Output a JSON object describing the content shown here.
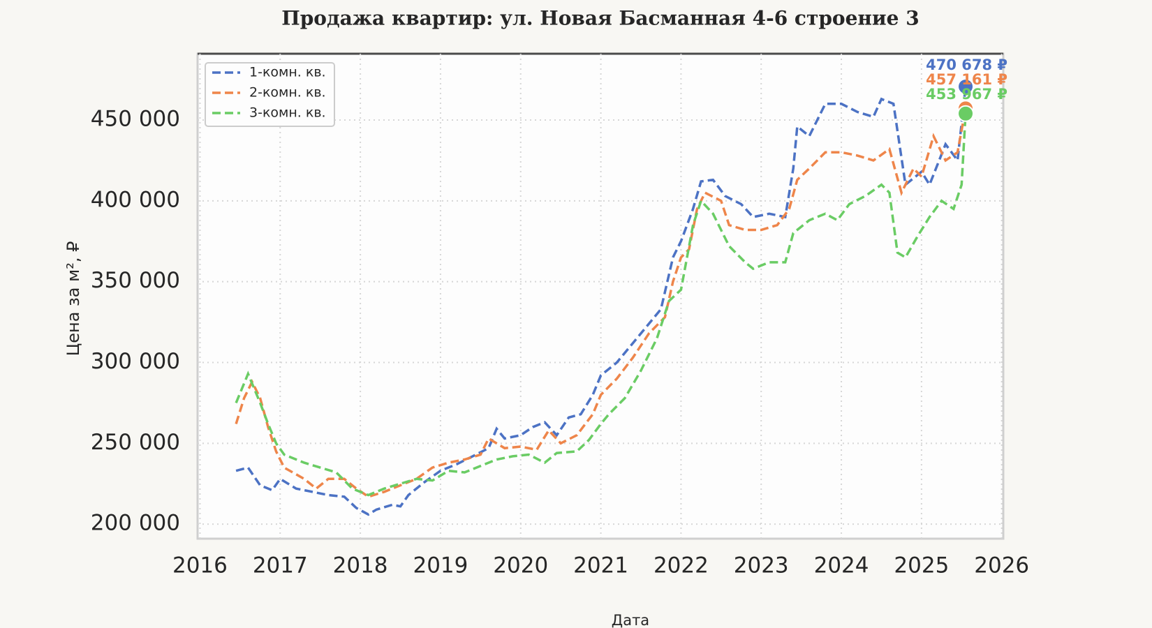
{
  "chart_data": {
    "type": "line",
    "title": "Продажа квартир: ул. Новая Басманная 4-6 строение 3",
    "x_label": "Дата",
    "y_label": "Цена за м², ₽",
    "xlim": [
      2015.97,
      2026.02
    ],
    "xticks": [
      2016,
      2017,
      2018,
      2019,
      2020,
      2021,
      2022,
      2023,
      2024,
      2025,
      2026
    ],
    "ylim": [
      191000,
      491000
    ],
    "yticks": [
      {
        "value": 200000,
        "label": "200 000"
      },
      {
        "value": 250000,
        "label": "250 000"
      },
      {
        "value": 300000,
        "label": "300 000"
      },
      {
        "value": 350000,
        "label": "350 000"
      },
      {
        "value": 400000,
        "label": "400 000"
      },
      {
        "value": 450000,
        "label": "450 000"
      }
    ],
    "grid": true,
    "legend": "upper left",
    "series": [
      {
        "name": "1-комн. кв.",
        "color": "#4c72c4",
        "x": [
          2016.45,
          2016.6,
          2016.75,
          2016.9,
          2017.0,
          2017.2,
          2017.4,
          2017.6,
          2017.8,
          2017.95,
          2018.1,
          2018.2,
          2018.4,
          2018.5,
          2018.6,
          2018.8,
          2019.0,
          2019.2,
          2019.4,
          2019.6,
          2019.7,
          2019.8,
          2020.0,
          2020.15,
          2020.3,
          2020.45,
          2020.6,
          2020.75,
          2020.9,
          2021.0,
          2021.2,
          2021.4,
          2021.6,
          2021.75,
          2021.9,
          2022.0,
          2022.15,
          2022.25,
          2022.4,
          2022.55,
          2022.75,
          2022.9,
          2023.1,
          2023.3,
          2023.4,
          2023.45,
          2023.6,
          2023.8,
          2024.0,
          2024.2,
          2024.4,
          2024.5,
          2024.65,
          2024.8,
          2025.0,
          2025.1,
          2025.3,
          2025.45,
          2025.55
        ],
        "values": [
          233000,
          235000,
          224000,
          221000,
          228000,
          222000,
          220000,
          218000,
          217000,
          210000,
          206000,
          209000,
          212000,
          211000,
          218000,
          226000,
          233000,
          237000,
          242000,
          247000,
          259000,
          253000,
          255000,
          260000,
          263000,
          255000,
          266000,
          268000,
          280000,
          292000,
          300000,
          312000,
          324000,
          333000,
          365000,
          375000,
          395000,
          412000,
          413000,
          403000,
          398000,
          390000,
          392000,
          390000,
          420000,
          446000,
          440000,
          460000,
          460000,
          455000,
          452000,
          463000,
          460000,
          410000,
          418000,
          410000,
          435000,
          425000,
          470678
        ]
      },
      {
        "name": "2-комн. кв.",
        "color": "#ee854a",
        "x": [
          2016.45,
          2016.55,
          2016.65,
          2016.75,
          2016.85,
          2016.95,
          2017.05,
          2017.3,
          2017.45,
          2017.6,
          2017.8,
          2017.95,
          2018.1,
          2018.3,
          2018.5,
          2018.7,
          2018.9,
          2019.1,
          2019.3,
          2019.5,
          2019.6,
          2019.8,
          2020.0,
          2020.2,
          2020.35,
          2020.5,
          2020.7,
          2020.9,
          2021.0,
          2021.2,
          2021.4,
          2021.6,
          2021.8,
          2021.9,
          2022.0,
          2022.1,
          2022.2,
          2022.3,
          2022.5,
          2022.6,
          2022.8,
          2023.0,
          2023.2,
          2023.35,
          2023.45,
          2023.6,
          2023.8,
          2024.0,
          2024.2,
          2024.4,
          2024.6,
          2024.75,
          2024.9,
          2025.0,
          2025.15,
          2025.3,
          2025.45,
          2025.55
        ],
        "values": [
          262000,
          278000,
          288000,
          278000,
          260000,
          245000,
          235000,
          228000,
          222000,
          228000,
          228000,
          222000,
          217000,
          220000,
          224000,
          228000,
          235000,
          238000,
          240000,
          243000,
          253000,
          247000,
          248000,
          246000,
          258000,
          250000,
          255000,
          268000,
          280000,
          290000,
          303000,
          318000,
          328000,
          350000,
          365000,
          370000,
          395000,
          405000,
          400000,
          385000,
          382000,
          382000,
          385000,
          395000,
          413000,
          420000,
          430000,
          430000,
          428000,
          425000,
          432000,
          405000,
          420000,
          415000,
          440000,
          425000,
          430000,
          457161
        ]
      },
      {
        "name": "3-комн. кв.",
        "color": "#6acc64",
        "x": [
          2016.45,
          2016.6,
          2016.75,
          2016.85,
          2016.95,
          2017.05,
          2017.3,
          2017.5,
          2017.7,
          2017.9,
          2018.1,
          2018.3,
          2018.5,
          2018.7,
          2018.9,
          2019.1,
          2019.3,
          2019.5,
          2019.7,
          2019.9,
          2020.1,
          2020.3,
          2020.45,
          2020.7,
          2020.85,
          2021.0,
          2021.1,
          2021.3,
          2021.5,
          2021.7,
          2021.85,
          2022.0,
          2022.15,
          2022.25,
          2022.4,
          2022.6,
          2022.8,
          2022.9,
          2023.1,
          2023.3,
          2023.4,
          2023.6,
          2023.8,
          2023.95,
          2024.1,
          2024.3,
          2024.5,
          2024.6,
          2024.7,
          2024.8,
          2024.95,
          2025.1,
          2025.25,
          2025.4,
          2025.5,
          2025.55
        ],
        "values": [
          275000,
          293000,
          275000,
          262000,
          250000,
          243000,
          238000,
          235000,
          232000,
          222000,
          218000,
          222000,
          225000,
          228000,
          227000,
          233000,
          232000,
          236000,
          240000,
          242000,
          243000,
          238000,
          244000,
          245000,
          252000,
          262000,
          268000,
          278000,
          295000,
          315000,
          338000,
          345000,
          385000,
          400000,
          392000,
          372000,
          362000,
          358000,
          362000,
          362000,
          380000,
          388000,
          392000,
          388000,
          398000,
          403000,
          410000,
          405000,
          368000,
          365000,
          378000,
          390000,
          400000,
          395000,
          410000,
          453967
        ]
      }
    ],
    "annotations": [
      {
        "text": "470 678 ₽",
        "color": "#4c72c4",
        "x": 2025.55,
        "y": 470678
      },
      {
        "text": "457 161 ₽",
        "color": "#ee854a",
        "x": 2025.55,
        "y": 457161
      },
      {
        "text": "453 967 ₽",
        "color": "#6acc64",
        "x": 2025.55,
        "y": 453967
      }
    ]
  }
}
